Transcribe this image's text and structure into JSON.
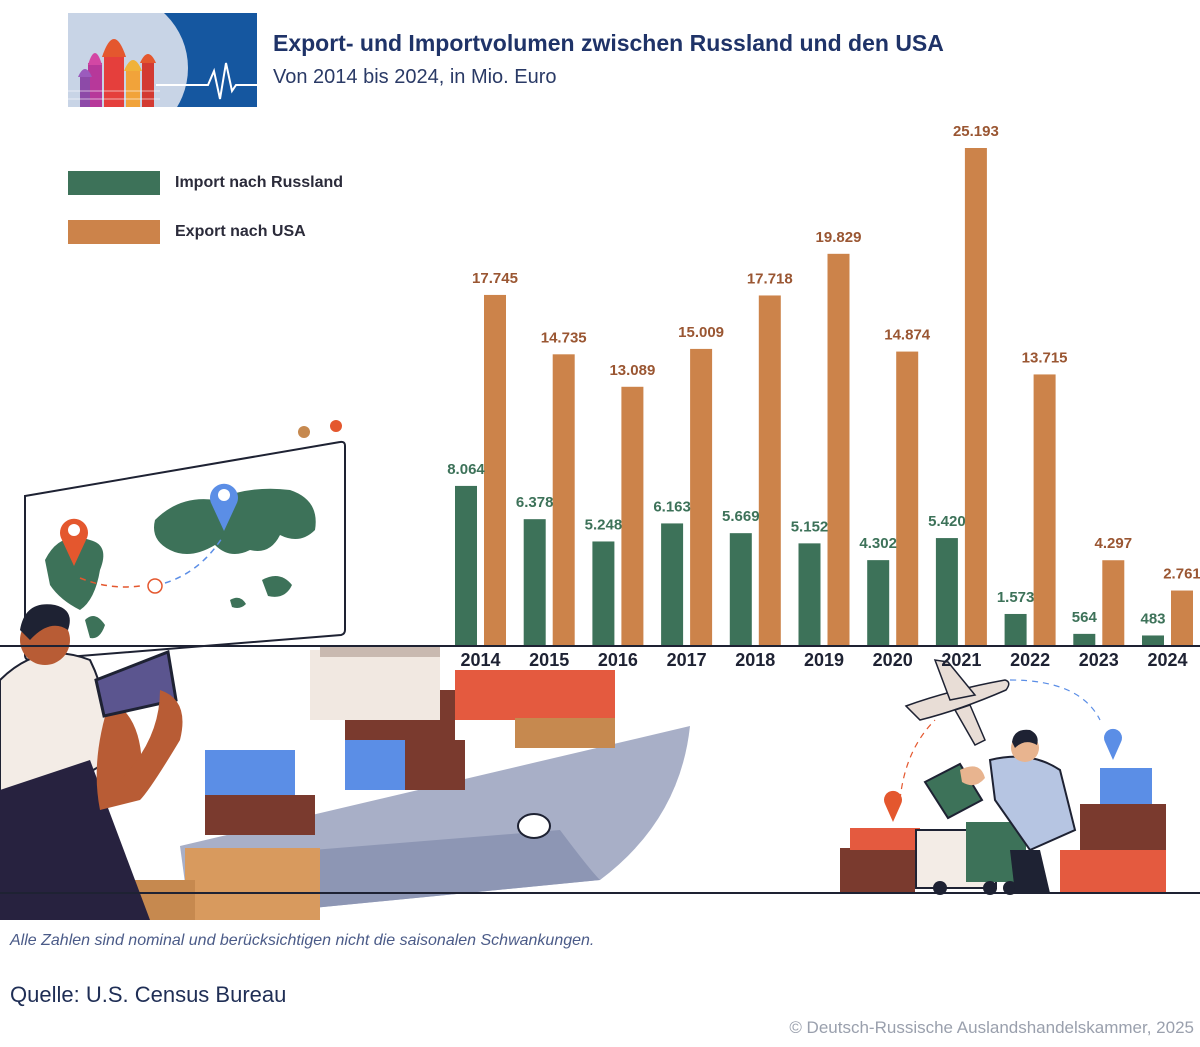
{
  "header": {
    "title": "Export- und Importvolumen zwischen Russland und den USA",
    "subtitle": "Von 2014 bis 2024, in Mio. Euro"
  },
  "colors": {
    "import": "#3d7259",
    "export": "#cc834a",
    "import_label": "#3d7259",
    "export_label": "#9a5632",
    "year_label": "#1e2233",
    "baseline": "#1e2233"
  },
  "chart_data": {
    "type": "bar",
    "categories": [
      "2014",
      "2015",
      "2016",
      "2017",
      "2018",
      "2019",
      "2020",
      "2021",
      "2022",
      "2023",
      "2024"
    ],
    "series": [
      {
        "name": "Import nach Russland",
        "values": [
          8064,
          6378,
          5248,
          6163,
          5669,
          5152,
          4302,
          5420,
          1573,
          564,
          483
        ],
        "labels": [
          "8.064",
          "6.378",
          "5.248",
          "6.163",
          "5.669",
          "5.152",
          "4.302",
          "5.420",
          "1.573",
          "564",
          "483"
        ]
      },
      {
        "name": "Export nach USA",
        "values": [
          17745,
          14735,
          13089,
          15009,
          17718,
          19829,
          14874,
          25193,
          13715,
          4297,
          2761
        ],
        "labels": [
          "17.745",
          "14.735",
          "13.089",
          "15.009",
          "17.718",
          "19.829",
          "14.874",
          "25.193",
          "13.715",
          "4.297",
          "2.761"
        ]
      }
    ],
    "legend_position": "top-left",
    "grid": false
  },
  "footer": {
    "note": "Alle Zahlen sind nominal und berücksichtigen nicht die saisonalen Schwankungen.",
    "source": "Quelle: U.S. Census Bureau",
    "copyright": "© Deutsch-Russische Auslandshandelskammer, 2025"
  },
  "illustrations": [
    "logo-kremlin-heartbeat",
    "world-map-screen",
    "person-with-tablet",
    "container-ship",
    "cargo-airplane",
    "logistics-worker",
    "delivery-truck",
    "location-pin-icon"
  ]
}
